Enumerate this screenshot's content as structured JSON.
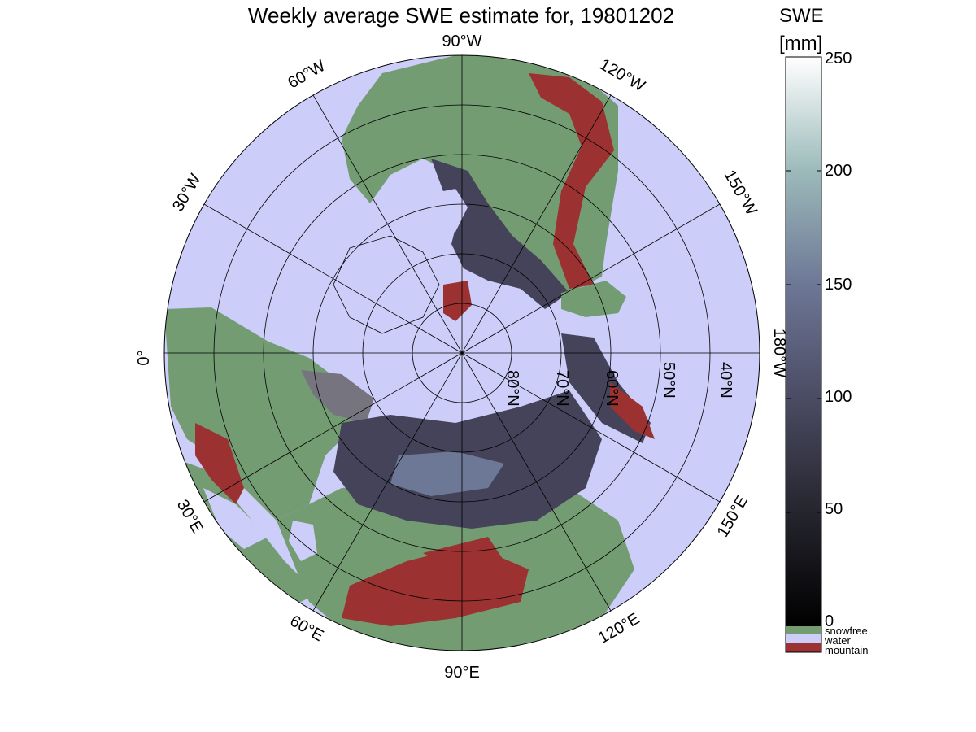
{
  "title": "Weekly average SWE estimate for, 19801202",
  "colorbar": {
    "label_line1": "SWE",
    "label_line2": "[mm]",
    "ticks": [
      "0",
      "50",
      "100",
      "150",
      "200",
      "250"
    ],
    "range": [
      0,
      250
    ],
    "gradient": [
      "#000000",
      "#25252e",
      "#4b4b63",
      "#6d7796",
      "#9cbaba",
      "#ffffff"
    ],
    "categories": [
      {
        "label": "snowfree",
        "color": "#749c72"
      },
      {
        "label": "water",
        "color": "#cdcdfa"
      },
      {
        "label": "mountain",
        "color": "#9b3130"
      }
    ]
  },
  "graticule": {
    "longitude_labels": {
      "lon_90w": "90°W",
      "lon_60w": "60°W",
      "lon_30w": "30°W",
      "lon_0": "0°",
      "lon_30e": "30°E",
      "lon_60e": "60°E",
      "lon_90e": "90°E",
      "lon_120e": "120°E",
      "lon_150e": "150°E",
      "lon_180w": "180°W",
      "lon_150w": "150°W",
      "lon_120w": "120°W"
    },
    "latitude_labels": {
      "lat_80n": "80°N",
      "lat_70n": "70°N",
      "lat_60n": "60°N",
      "lat_50n": "50°N",
      "lat_40n": "40°N"
    }
  }
}
